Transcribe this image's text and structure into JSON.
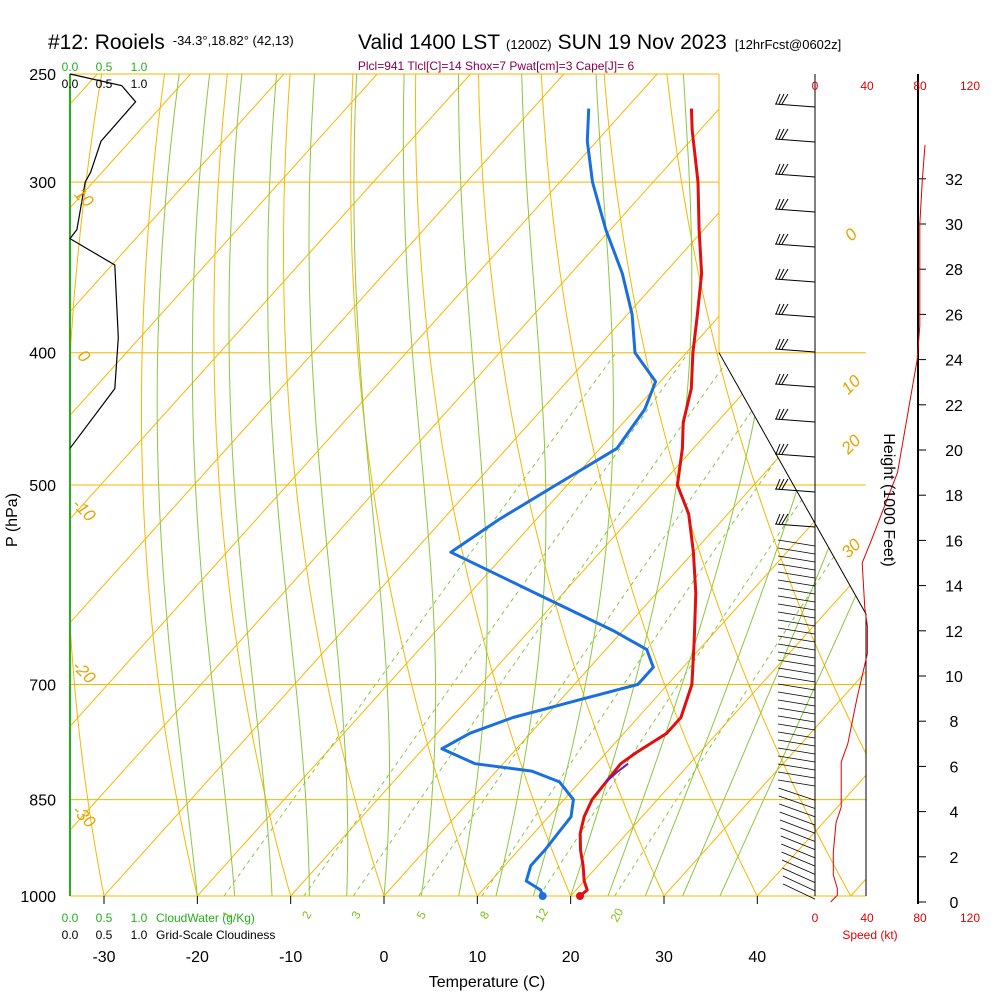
{
  "title": {
    "station": "#12: Rooiels",
    "location": "-34.3°,18.82° (42,13)",
    "valid": "Valid 1400 LST",
    "utc": "(1200Z)",
    "date": "SUN 19 Nov 2023",
    "forecast": "[12hrFcst@0602z]"
  },
  "indices": "Plcl=941 Tlcl[C]=14 Shox=7 Pwat[cm]=3 Cape[J]= 6",
  "chart_data": {
    "type": "line",
    "xlabel": "Temperature (C)",
    "ylabel": "P (hPa)",
    "right_ylabel": "Height (1000 Feet)",
    "xlim": [
      -30,
      45
    ],
    "pressure_ticks": [
      "250",
      "300",
      "400",
      "500",
      "700",
      "850",
      "1000"
    ],
    "pressure_values": [
      250,
      300,
      400,
      500,
      700,
      850,
      1000
    ],
    "temp_ticks": [
      "-30",
      "-20",
      "-10",
      "0",
      "10",
      "20",
      "30",
      "40"
    ],
    "temp_values": [
      -30,
      -20,
      -10,
      0,
      10,
      20,
      30,
      40
    ],
    "height_ticks": [
      "0",
      "2",
      "4",
      "6",
      "8",
      "10",
      "12",
      "14",
      "16",
      "18",
      "20",
      "22",
      "24",
      "26",
      "28",
      "30",
      "32"
    ],
    "height_values": [
      0,
      2,
      4,
      6,
      8,
      10,
      12,
      14,
      16,
      18,
      20,
      22,
      24,
      26,
      28,
      30,
      32
    ],
    "isotherm_labels": [
      {
        "text": "10",
        "t": 10,
        "p": 310
      },
      {
        "text": "0",
        "t": 0,
        "p": 405
      },
      {
        "text": "-10",
        "t": -10,
        "p": 525
      },
      {
        "text": "-20",
        "t": -20,
        "p": 690
      },
      {
        "text": "-30",
        "t": -30,
        "p": 880
      }
    ],
    "theta_labels": [
      {
        "text": "0",
        "t": 37,
        "p": 330
      },
      {
        "text": "10",
        "t": 39,
        "p": 425
      },
      {
        "text": "20",
        "t": 42,
        "p": 470
      },
      {
        "text": "30",
        "t": 47,
        "p": 560
      }
    ],
    "mixing_ratio_labels": [
      "1",
      "2",
      "3",
      "5",
      "8",
      "12",
      "20"
    ],
    "mixing_ratio_values": [
      1,
      2,
      3,
      5,
      8,
      12,
      20
    ],
    "cloud_scale_top_green": [
      "0.0",
      "0.5",
      "1.0"
    ],
    "cloud_scale_top_black": [
      "0.0",
      "0.5",
      "1.0"
    ],
    "cloud_scale_bottom_green": [
      "0.0",
      "0.5",
      "1.0"
    ],
    "cloudwater_label": "CloudWater (g/Kg)",
    "cloud_scale_bottom_black": [
      "0.0",
      "0.5",
      "1.0"
    ],
    "cloudiness_label": "Grid-Scale Cloudiness",
    "speed_ticks_top": [
      "0",
      "40",
      "80",
      "120"
    ],
    "speed_ticks_bottom": [
      "0",
      "40",
      "80",
      "120"
    ],
    "speed_values": [
      0,
      40,
      80,
      120
    ],
    "speed_label": "Speed (kt)",
    "series": [
      {
        "name": "Temperature",
        "color": "#e01010",
        "points": [
          {
            "p": 1000,
            "t": 21.0
          },
          {
            "p": 990,
            "t": 21.2
          },
          {
            "p": 975,
            "t": 20.0
          },
          {
            "p": 950,
            "t": 18.4
          },
          {
            "p": 925,
            "t": 16.6
          },
          {
            "p": 900,
            "t": 15.0
          },
          {
            "p": 875,
            "t": 13.8
          },
          {
            "p": 850,
            "t": 13.0
          },
          {
            "p": 825,
            "t": 12.8
          },
          {
            "p": 800,
            "t": 12.6
          },
          {
            "p": 785,
            "t": 13.2
          },
          {
            "p": 760,
            "t": 14.6
          },
          {
            "p": 740,
            "t": 14.6
          },
          {
            "p": 700,
            "t": 12.6
          },
          {
            "p": 650,
            "t": 8.6
          },
          {
            "p": 600,
            "t": 4.2
          },
          {
            "p": 560,
            "t": 0.0
          },
          {
            "p": 525,
            "t": -4.2
          },
          {
            "p": 500,
            "t": -8.2
          },
          {
            "p": 470,
            "t": -11.2
          },
          {
            "p": 450,
            "t": -13.6
          },
          {
            "p": 425,
            "t": -16.0
          },
          {
            "p": 400,
            "t": -19.3
          },
          {
            "p": 375,
            "t": -22.5
          },
          {
            "p": 350,
            "t": -26.0
          },
          {
            "p": 325,
            "t": -30.5
          },
          {
            "p": 300,
            "t": -35.2
          },
          {
            "p": 275,
            "t": -40.8
          },
          {
            "p": 265,
            "t": -43.0
          }
        ]
      },
      {
        "name": "Dewpoint",
        "color": "#1a6fe0",
        "points": [
          {
            "p": 1000,
            "t": 17.0
          },
          {
            "p": 990,
            "t": 16.2
          },
          {
            "p": 975,
            "t": 13.8
          },
          {
            "p": 950,
            "t": 12.8
          },
          {
            "p": 925,
            "t": 12.8
          },
          {
            "p": 900,
            "t": 12.6
          },
          {
            "p": 875,
            "t": 12.4
          },
          {
            "p": 850,
            "t": 11.0
          },
          {
            "p": 825,
            "t": 7.8
          },
          {
            "p": 810,
            "t": 3.8
          },
          {
            "p": 800,
            "t": -3.0
          },
          {
            "p": 780,
            "t": -8.0
          },
          {
            "p": 760,
            "t": -6.5
          },
          {
            "p": 740,
            "t": -3.4
          },
          {
            "p": 720,
            "t": 1.6
          },
          {
            "p": 700,
            "t": 6.8
          },
          {
            "p": 680,
            "t": 6.8
          },
          {
            "p": 660,
            "t": 4.4
          },
          {
            "p": 640,
            "t": -0.8
          },
          {
            "p": 600,
            "t": -13.0
          },
          {
            "p": 560,
            "t": -26.0
          },
          {
            "p": 530,
            "t": -24.0
          },
          {
            "p": 500,
            "t": -21.2
          },
          {
            "p": 470,
            "t": -18.2
          },
          {
            "p": 440,
            "t": -19.0
          },
          {
            "p": 420,
            "t": -20.5
          },
          {
            "p": 400,
            "t": -25.5
          },
          {
            "p": 375,
            "t": -29.5
          },
          {
            "p": 350,
            "t": -34.5
          },
          {
            "p": 325,
            "t": -40.5
          },
          {
            "p": 300,
            "t": -46.5
          },
          {
            "p": 280,
            "t": -51.0
          },
          {
            "p": 265,
            "t": -54.0
          }
        ]
      }
    ],
    "surface_markers": [
      {
        "name": "surface-temperature",
        "p": 1000,
        "t": 21.0,
        "color": "#e01010"
      },
      {
        "name": "surface-dewpoint",
        "p": 1000,
        "t": 17.0,
        "color": "#1a6fe0"
      }
    ],
    "wind_speed_profile_kt": [
      {
        "h": 0.0,
        "s": 12
      },
      {
        "h": 0.3,
        "s": 17
      },
      {
        "h": 0.6,
        "s": 17
      },
      {
        "h": 1.2,
        "s": 14
      },
      {
        "h": 2.2,
        "s": 14
      },
      {
        "h": 3.5,
        "s": 16
      },
      {
        "h": 4.2,
        "s": 20
      },
      {
        "h": 5.2,
        "s": 20
      },
      {
        "h": 6.2,
        "s": 20
      },
      {
        "h": 7.0,
        "s": 25
      },
      {
        "h": 9.0,
        "s": 32
      },
      {
        "h": 11.0,
        "s": 40
      },
      {
        "h": 12.2,
        "s": 40
      },
      {
        "h": 13.0,
        "s": 38
      },
      {
        "h": 15.0,
        "s": 36
      },
      {
        "h": 16.0,
        "s": 43
      },
      {
        "h": 19.0,
        "s": 63
      },
      {
        "h": 22.0,
        "s": 72
      },
      {
        "h": 24.0,
        "s": 78
      },
      {
        "h": 25.5,
        "s": 80
      },
      {
        "h": 28.0,
        "s": 80
      },
      {
        "h": 30.0,
        "s": 80
      },
      {
        "h": 32.0,
        "s": 82
      },
      {
        "h": 33.5,
        "s": 84
      }
    ],
    "cloudiness_profile": [
      {
        "p": 250,
        "v": 0.0
      },
      {
        "p": 255,
        "v": 0.75
      },
      {
        "p": 262,
        "v": 0.95
      },
      {
        "p": 280,
        "v": 0.45
      },
      {
        "p": 295,
        "v": 0.3
      },
      {
        "p": 300,
        "v": 0.22
      },
      {
        "p": 325,
        "v": 0.1
      },
      {
        "p": 330,
        "v": 0.0
      },
      {
        "p": 345,
        "v": 0.65
      },
      {
        "p": 390,
        "v": 0.7
      },
      {
        "p": 425,
        "v": 0.65
      },
      {
        "p": 470,
        "v": 0.0
      }
    ]
  }
}
